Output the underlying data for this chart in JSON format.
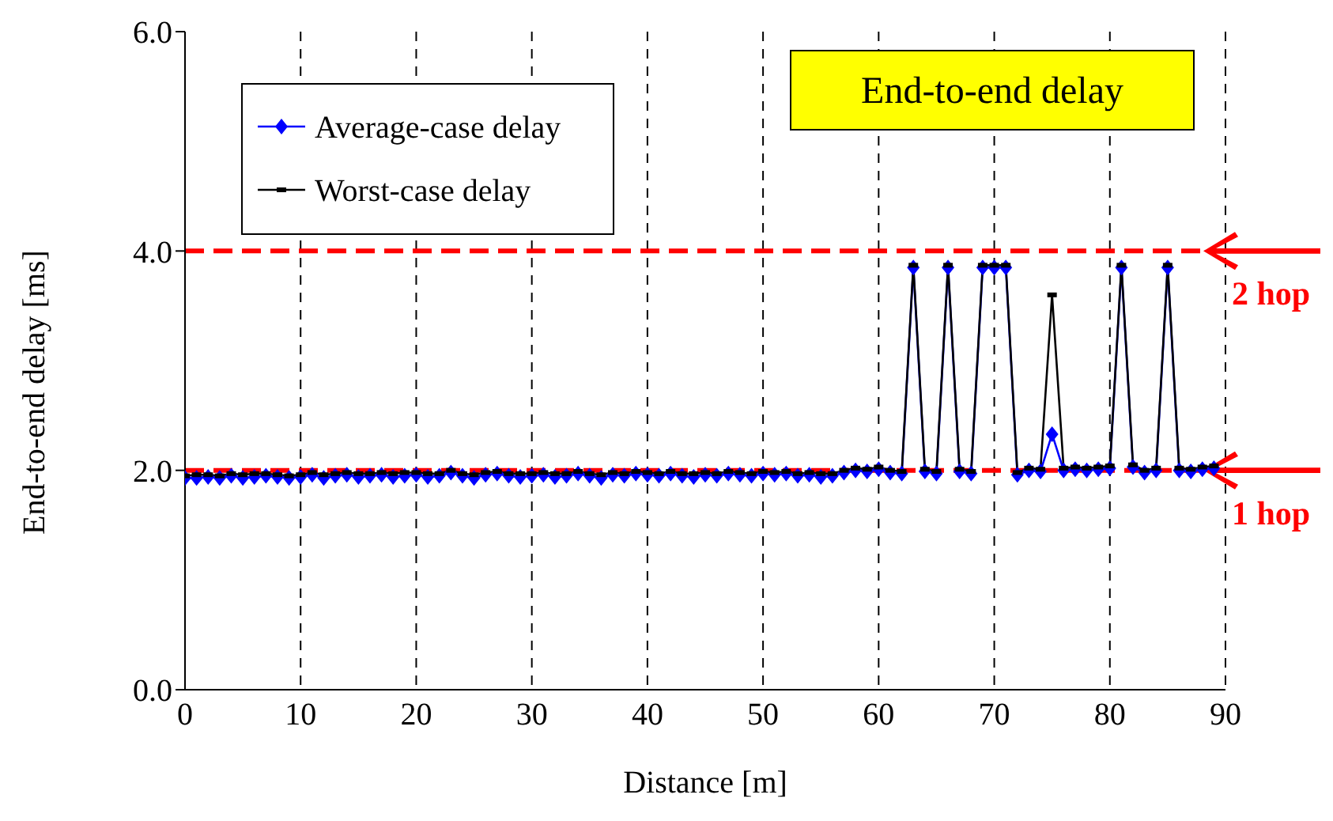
{
  "chart_data": {
    "type": "line",
    "title": "End-to-end delay",
    "xlabel": "Distance [m]",
    "ylabel": "End-to-end delay [ms]",
    "x": [
      0,
      1,
      2,
      3,
      4,
      5,
      6,
      7,
      8,
      9,
      10,
      11,
      12,
      13,
      14,
      15,
      16,
      17,
      18,
      19,
      20,
      21,
      22,
      23,
      24,
      25,
      26,
      27,
      28,
      29,
      30,
      31,
      32,
      33,
      34,
      35,
      36,
      37,
      38,
      39,
      40,
      41,
      42,
      43,
      44,
      45,
      46,
      47,
      48,
      49,
      50,
      51,
      52,
      53,
      54,
      55,
      56,
      57,
      58,
      59,
      60,
      61,
      62,
      63,
      64,
      65,
      66,
      67,
      68,
      69,
      70,
      71,
      72,
      73,
      74,
      75,
      76,
      77,
      78,
      79,
      80,
      81,
      82,
      83,
      84,
      85,
      86,
      87,
      88,
      89
    ],
    "series": [
      {
        "name": "Average-case delay",
        "color": "#0000ff",
        "marker": "diamond",
        "values": [
          1.93,
          1.93,
          1.94,
          1.93,
          1.95,
          1.93,
          1.94,
          1.95,
          1.94,
          1.93,
          1.94,
          1.96,
          1.93,
          1.95,
          1.96,
          1.94,
          1.95,
          1.96,
          1.94,
          1.95,
          1.96,
          1.94,
          1.95,
          1.98,
          1.95,
          1.93,
          1.96,
          1.97,
          1.95,
          1.94,
          1.95,
          1.96,
          1.94,
          1.95,
          1.97,
          1.95,
          1.93,
          1.96,
          1.95,
          1.97,
          1.96,
          1.95,
          1.97,
          1.95,
          1.94,
          1.96,
          1.95,
          1.97,
          1.96,
          1.95,
          1.97,
          1.96,
          1.97,
          1.95,
          1.96,
          1.94,
          1.95,
          1.98,
          2.0,
          1.99,
          2.01,
          1.98,
          1.97,
          3.85,
          1.99,
          1.97,
          3.85,
          1.99,
          1.97,
          3.85,
          3.85,
          3.85,
          1.96,
          2.0,
          1.99,
          2.33,
          2.0,
          2.01,
          2.0,
          2.01,
          2.02,
          3.85,
          2.03,
          1.98,
          2.0,
          3.85,
          2.0,
          1.99,
          2.01,
          2.02
        ]
      },
      {
        "name": "Worst-case delay",
        "color": "#000000",
        "marker": "square",
        "values": [
          1.95,
          1.96,
          1.96,
          1.95,
          1.97,
          1.96,
          1.97,
          1.97,
          1.96,
          1.95,
          1.96,
          1.98,
          1.96,
          1.97,
          1.98,
          1.97,
          1.97,
          1.98,
          1.97,
          1.98,
          1.98,
          1.97,
          1.97,
          2.0,
          1.97,
          1.96,
          1.98,
          1.99,
          1.97,
          1.97,
          1.97,
          1.98,
          1.97,
          1.97,
          1.99,
          1.97,
          1.96,
          1.98,
          1.97,
          1.99,
          1.98,
          1.97,
          1.99,
          1.97,
          1.97,
          1.98,
          1.97,
          1.99,
          1.98,
          1.97,
          1.99,
          1.98,
          1.99,
          1.97,
          1.98,
          1.97,
          1.97,
          2.0,
          2.02,
          2.01,
          2.03,
          2.0,
          1.99,
          3.87,
          2.01,
          1.99,
          3.87,
          2.01,
          1.99,
          3.87,
          3.87,
          3.87,
          1.98,
          2.02,
          2.01,
          3.6,
          2.02,
          2.03,
          2.02,
          2.03,
          2.04,
          3.87,
          2.05,
          2.0,
          2.02,
          3.87,
          2.02,
          2.01,
          2.03,
          2.04
        ]
      }
    ],
    "xlim": [
      0,
      90
    ],
    "xticks": [
      0,
      10,
      20,
      30,
      40,
      50,
      60,
      70,
      80,
      90
    ],
    "ylim": [
      0,
      6
    ],
    "yticks": [
      {
        "value": 0,
        "label": "0.0"
      },
      {
        "value": 2,
        "label": "2.0"
      },
      {
        "value": 4,
        "label": "4.0"
      },
      {
        "value": 6,
        "label": "6.0"
      }
    ],
    "ref_lines": [
      {
        "axis": "y",
        "value": 4,
        "label": "2 hop",
        "color": "#ff0000",
        "line_style": "dashed"
      },
      {
        "axis": "y",
        "value": 2,
        "label": "1 hop",
        "color": "#ff0000",
        "line_style": "dashed"
      }
    ],
    "grid": "x",
    "legend": "top left",
    "line_style": "solid"
  }
}
